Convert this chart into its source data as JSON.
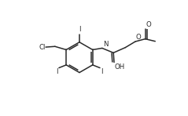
{
  "bg_color": "#ffffff",
  "line_color": "#2a2a2a",
  "line_width": 1.1,
  "font_size": 6.2,
  "font_color": "#2a2a2a",
  "figsize": [
    2.39,
    1.48
  ],
  "dpi": 100,
  "xlim": [
    -0.12,
    1.02
  ],
  "ylim": [
    0.08,
    0.95
  ]
}
